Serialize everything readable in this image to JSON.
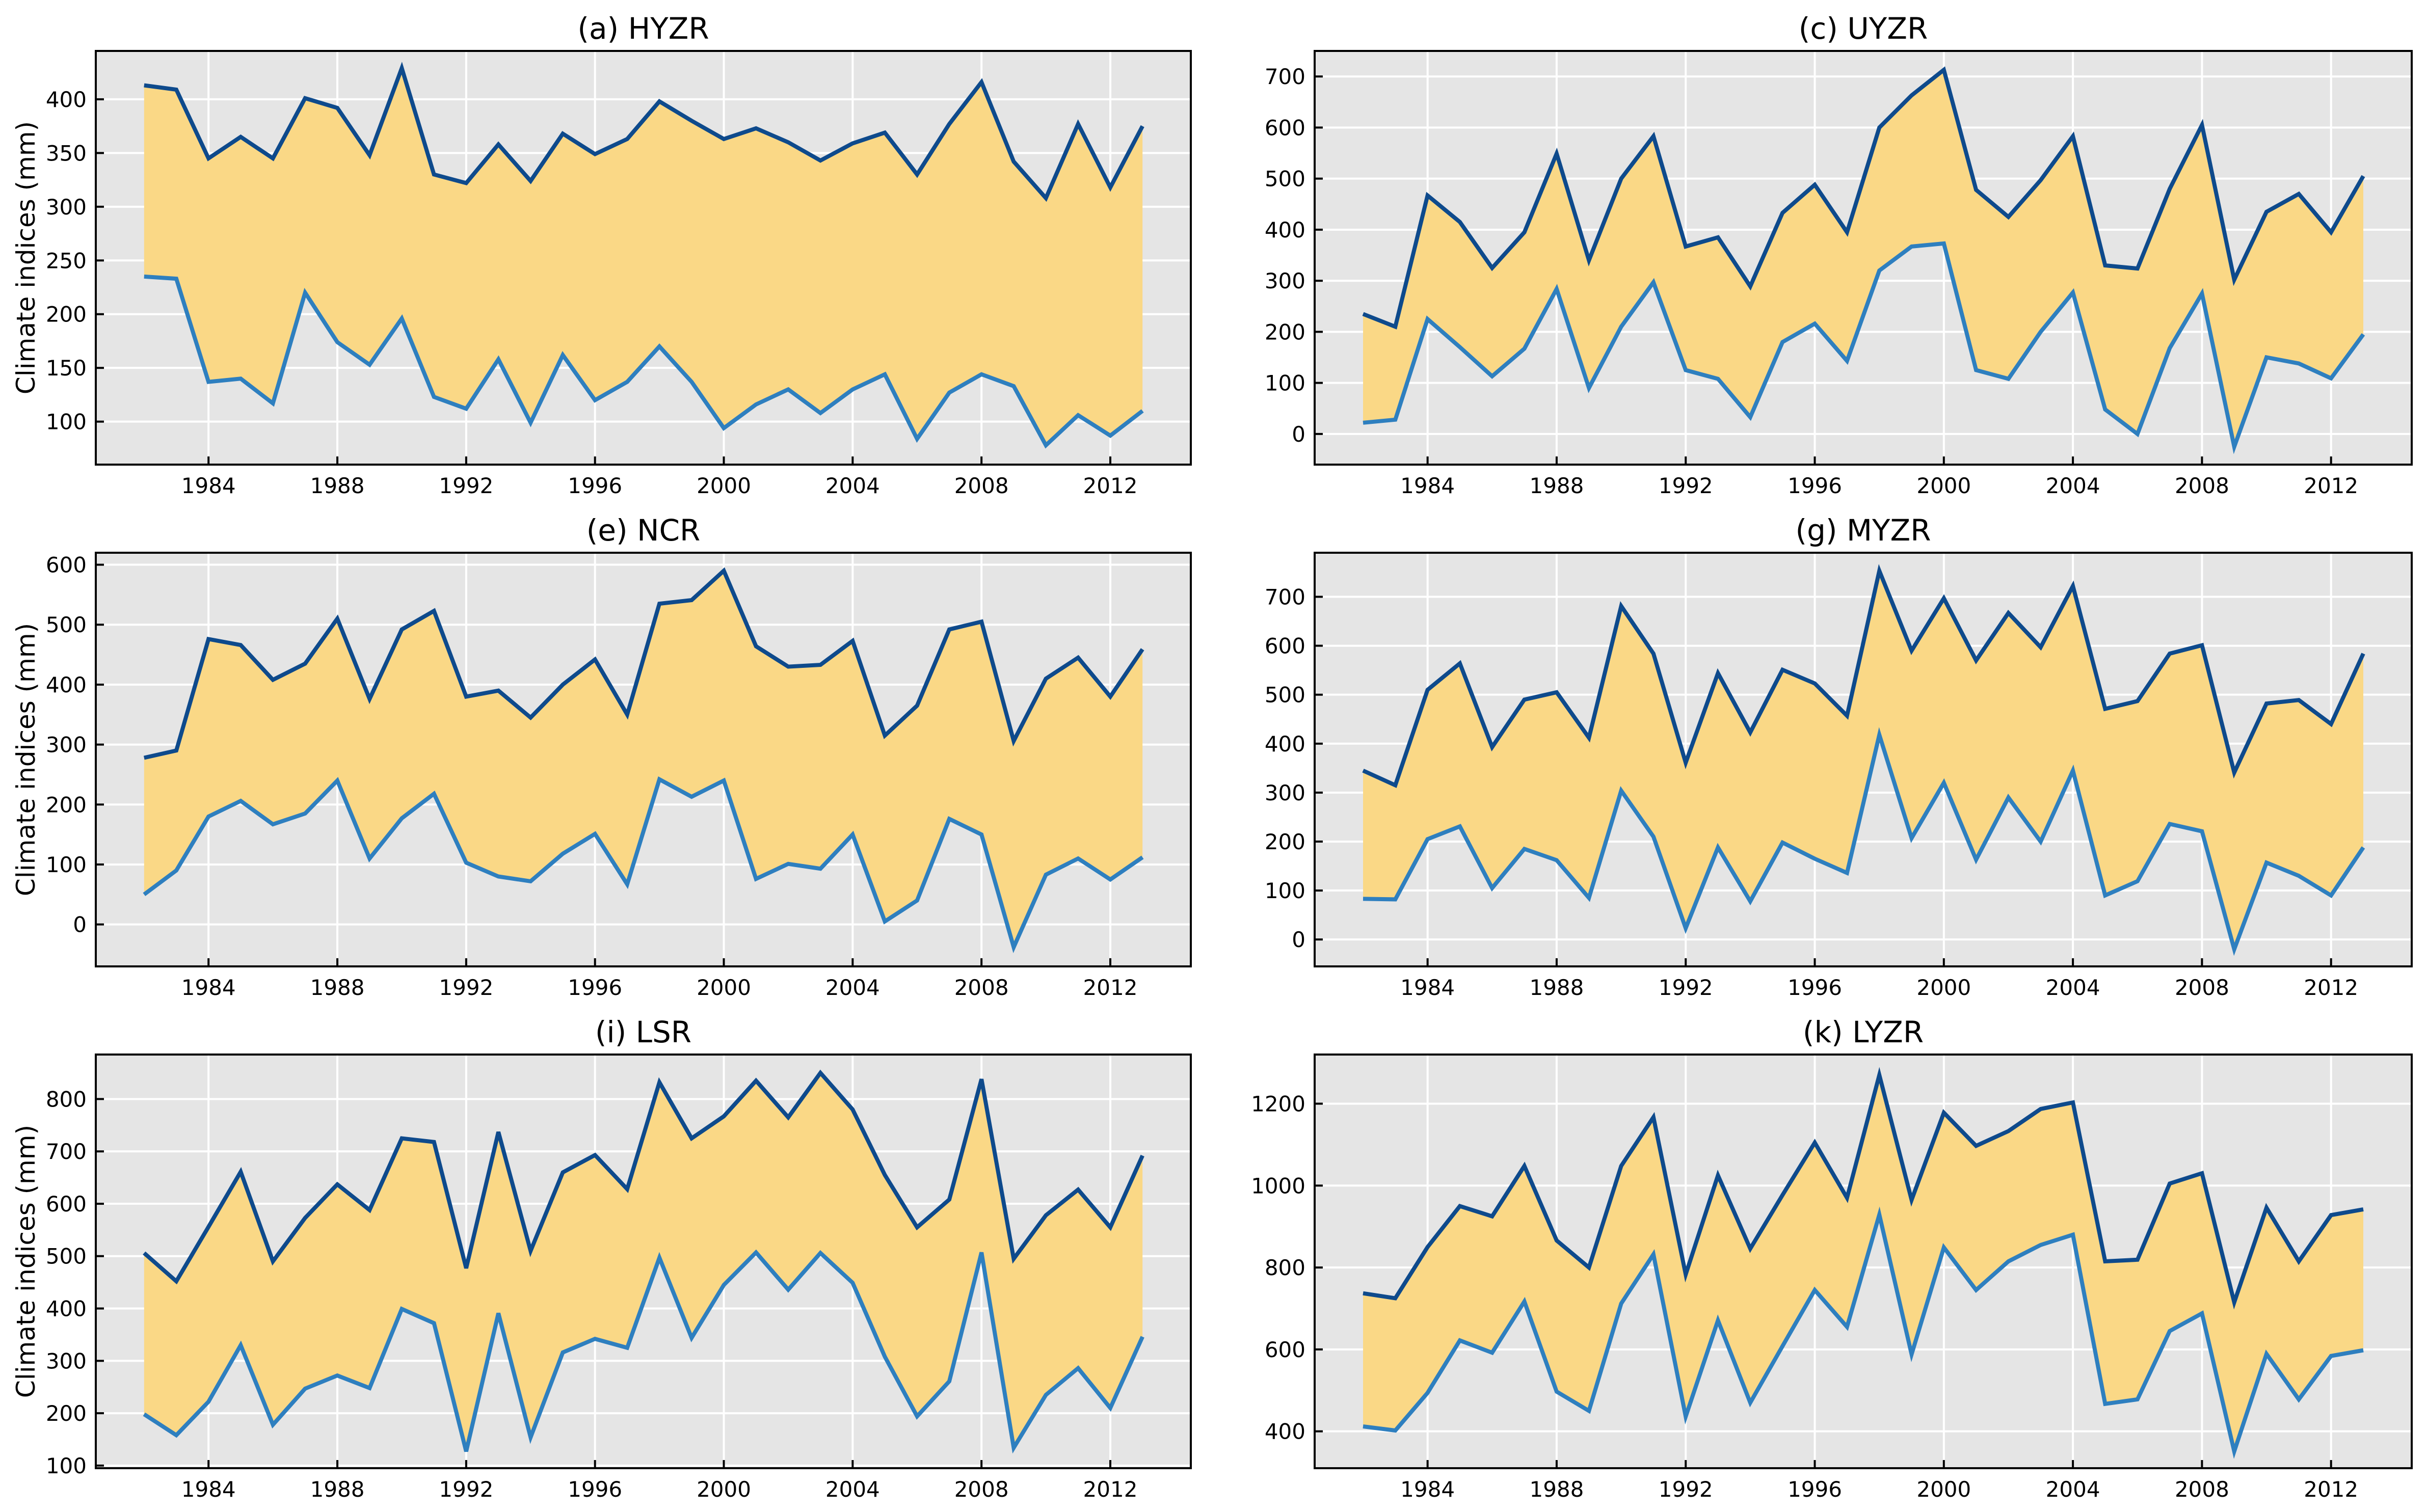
{
  "figure": {
    "ylabel": "Climate indices (mm)",
    "x_ticks": [
      1984,
      1988,
      1992,
      1996,
      2000,
      2004,
      2008,
      2012
    ],
    "background": "#e5e5e5",
    "fill_color": "#fad886",
    "upper_color": "#0e4a8c",
    "lower_color": "#2e7fbf",
    "grid_color": "#ffffff"
  },
  "chart_data": [
    {
      "type": "line",
      "title": "(a) HYZR",
      "x": [
        1982,
        1983,
        1984,
        1985,
        1986,
        1987,
        1988,
        1989,
        1990,
        1991,
        1992,
        1993,
        1994,
        1995,
        1996,
        1997,
        1998,
        1999,
        2000,
        2001,
        2002,
        2003,
        2004,
        2005,
        2006,
        2007,
        2008,
        2009,
        2010,
        2011,
        2012,
        2013
      ],
      "series": [
        {
          "values": [
            413,
            409,
            345,
            365,
            345,
            401,
            392,
            348,
            429,
            330,
            322,
            358,
            324,
            368,
            349,
            363,
            398,
            380,
            363,
            373,
            360,
            343,
            359,
            369,
            330,
            377,
            416,
            342,
            308,
            377,
            318,
            375
          ]
        },
        {
          "values": [
            235,
            233,
            137,
            140,
            117,
            220,
            174,
            153,
            196,
            123,
            112,
            158,
            99,
            162,
            120,
            137,
            170,
            137,
            94,
            116,
            130,
            108,
            130,
            144,
            84,
            127,
            144,
            133,
            78,
            106,
            87,
            110
          ]
        }
      ],
      "xlabel": "",
      "ylabel": "Climate indices (mm)",
      "xlim": [
        1980.5,
        2014.5
      ],
      "ylim": [
        60,
        445
      ],
      "y_ticks": [
        100,
        150,
        200,
        250,
        300,
        350,
        400
      ],
      "grid": true
    },
    {
      "type": "line",
      "title": "(c) UYZR",
      "x": [
        1982,
        1983,
        1984,
        1985,
        1986,
        1987,
        1988,
        1989,
        1990,
        1991,
        1992,
        1993,
        1994,
        1995,
        1996,
        1997,
        1998,
        1999,
        2000,
        2001,
        2002,
        2003,
        2004,
        2005,
        2006,
        2007,
        2008,
        2009,
        2010,
        2011,
        2012,
        2013
      ],
      "series": [
        {
          "values": [
            235,
            210,
            467,
            415,
            325,
            395,
            549,
            340,
            500,
            583,
            367,
            385,
            289,
            433,
            488,
            395,
            600,
            663,
            713,
            478,
            425,
            497,
            583,
            330,
            324,
            480,
            605,
            302,
            435,
            470,
            395,
            505
          ]
        },
        {
          "values": [
            22,
            28,
            225,
            170,
            113,
            167,
            284,
            90,
            210,
            297,
            125,
            108,
            33,
            180,
            216,
            143,
            320,
            367,
            373,
            125,
            108,
            200,
            277,
            48,
            0,
            168,
            275,
            -25,
            150,
            138,
            109,
            195
          ]
        }
      ],
      "xlabel": "",
      "ylabel": "",
      "xlim": [
        1980.5,
        2014.5
      ],
      "ylim": [
        -60,
        750
      ],
      "y_ticks": [
        0,
        100,
        200,
        300,
        400,
        500,
        600,
        700
      ],
      "grid": true
    },
    {
      "type": "line",
      "title": "(e) NCR",
      "x": [
        1982,
        1983,
        1984,
        1985,
        1986,
        1987,
        1988,
        1989,
        1990,
        1991,
        1992,
        1993,
        1994,
        1995,
        1996,
        1997,
        1998,
        1999,
        2000,
        2001,
        2002,
        2003,
        2004,
        2005,
        2006,
        2007,
        2008,
        2009,
        2010,
        2011,
        2012,
        2013
      ],
      "series": [
        {
          "values": [
            278,
            290,
            476,
            466,
            408,
            435,
            510,
            376,
            492,
            523,
            380,
            390,
            345,
            400,
            442,
            350,
            535,
            541,
            590,
            464,
            430,
            433,
            473,
            315,
            365,
            492,
            505,
            306,
            410,
            445,
            380,
            459
          ]
        },
        {
          "values": [
            50,
            90,
            180,
            206,
            167,
            185,
            240,
            110,
            177,
            218,
            103,
            80,
            72,
            118,
            151,
            67,
            242,
            213,
            240,
            76,
            101,
            93,
            150,
            5,
            40,
            176,
            150,
            -38,
            83,
            110,
            75,
            112
          ]
        }
      ],
      "xlabel": "",
      "ylabel": "Climate indices (mm)",
      "xlim": [
        1980.5,
        2014.5
      ],
      "ylim": [
        -70,
        620
      ],
      "y_ticks": [
        0,
        100,
        200,
        300,
        400,
        500,
        600
      ],
      "grid": true
    },
    {
      "type": "line",
      "title": "(g) MYZR",
      "x": [
        1982,
        1983,
        1984,
        1985,
        1986,
        1987,
        1988,
        1989,
        1990,
        1991,
        1992,
        1993,
        1994,
        1995,
        1996,
        1997,
        1998,
        1999,
        2000,
        2001,
        2002,
        2003,
        2004,
        2005,
        2006,
        2007,
        2008,
        2009,
        2010,
        2011,
        2012,
        2013
      ],
      "series": [
        {
          "values": [
            345,
            315,
            510,
            564,
            393,
            490,
            505,
            412,
            681,
            584,
            361,
            544,
            423,
            551,
            523,
            457,
            753,
            590,
            697,
            570,
            667,
            597,
            722,
            471,
            487,
            584,
            601,
            341,
            482,
            489,
            440,
            584
          ]
        },
        {
          "values": [
            83,
            82,
            205,
            231,
            105,
            185,
            162,
            85,
            304,
            210,
            23,
            188,
            78,
            198,
            165,
            136,
            418,
            207,
            320,
            163,
            290,
            200,
            345,
            90,
            119,
            236,
            221,
            -20,
            157,
            130,
            90,
            188
          ]
        }
      ],
      "xlabel": "",
      "ylabel": "",
      "xlim": [
        1980.5,
        2014.5
      ],
      "ylim": [
        -55,
        790
      ],
      "y_ticks": [
        0,
        100,
        200,
        300,
        400,
        500,
        600,
        700
      ],
      "grid": true
    },
    {
      "type": "line",
      "title": "(i) LSR",
      "x": [
        1982,
        1983,
        1984,
        1985,
        1986,
        1987,
        1988,
        1989,
        1990,
        1991,
        1992,
        1993,
        1994,
        1995,
        1996,
        1997,
        1998,
        1999,
        2000,
        2001,
        2002,
        2003,
        2004,
        2005,
        2006,
        2007,
        2008,
        2009,
        2010,
        2011,
        2012,
        2013
      ],
      "series": [
        {
          "values": [
            506,
            452,
            556,
            661,
            490,
            573,
            637,
            588,
            725,
            718,
            477,
            737,
            510,
            660,
            693,
            628,
            832,
            725,
            767,
            835,
            765,
            850,
            780,
            655,
            555,
            608,
            838,
            495,
            578,
            627,
            555,
            692
          ]
        },
        {
          "values": [
            198,
            158,
            222,
            330,
            178,
            247,
            272,
            248,
            399,
            372,
            127,
            391,
            154,
            316,
            342,
            325,
            497,
            344,
            445,
            507,
            436,
            506,
            449,
            308,
            194,
            261,
            507,
            134,
            235,
            286,
            210,
            346
          ]
        }
      ],
      "xlabel": "",
      "ylabel": "Climate indices (mm)",
      "xlim": [
        1980.5,
        2014.5
      ],
      "ylim": [
        95,
        885
      ],
      "y_ticks": [
        100,
        200,
        300,
        400,
        500,
        600,
        700,
        800
      ],
      "grid": true
    },
    {
      "type": "line",
      "title": "(k) LYZR",
      "x": [
        1982,
        1983,
        1984,
        1985,
        1986,
        1987,
        1988,
        1989,
        1990,
        1991,
        1992,
        1993,
        1994,
        1995,
        1996,
        1997,
        1998,
        1999,
        2000,
        2001,
        2002,
        2003,
        2004,
        2005,
        2006,
        2007,
        2008,
        2009,
        2010,
        2011,
        2012,
        2013
      ],
      "series": [
        {
          "values": [
            737,
            725,
            850,
            950,
            925,
            1048,
            866,
            800,
            1048,
            1167,
            783,
            1025,
            846,
            977,
            1105,
            970,
            1270,
            965,
            1178,
            1097,
            1133,
            1187,
            1203,
            815,
            819,
            1005,
            1030,
            715,
            946,
            815,
            928,
            942
          ]
        },
        {
          "values": [
            412,
            402,
            494,
            622,
            592,
            717,
            497,
            450,
            712,
            832,
            436,
            671,
            470,
            608,
            745,
            655,
            929,
            588,
            849,
            745,
            815,
            855,
            880,
            467,
            478,
            645,
            688,
            351,
            589,
            478,
            584,
            598
          ]
        }
      ],
      "xlabel": "",
      "ylabel": "",
      "xlim": [
        1980.5,
        2014.5
      ],
      "ylim": [
        310,
        1320
      ],
      "y_ticks": [
        400,
        600,
        800,
        1000,
        1200
      ],
      "grid": true
    }
  ]
}
